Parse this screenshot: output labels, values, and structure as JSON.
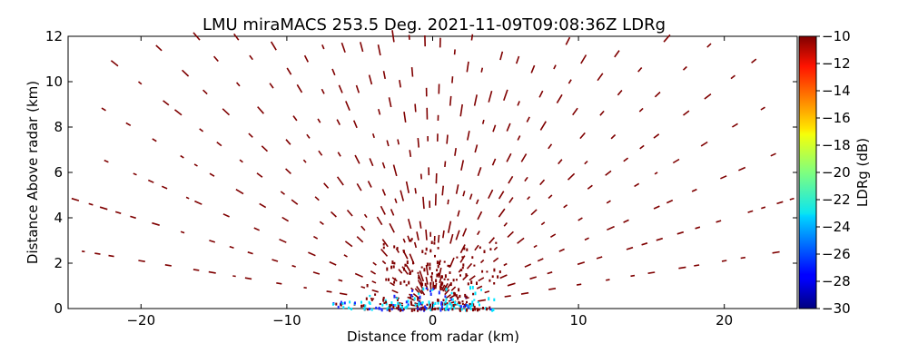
{
  "chart_data": {
    "type": "scatter",
    "title": "LMU miraMACS 253.5 Deg. 2021-11-09T09:08:36Z  LDRg",
    "xlabel": "Distance from radar (km)",
    "ylabel": "Distance Above radar  (km)",
    "xlim": [
      -25,
      25
    ],
    "ylim": [
      0,
      12
    ],
    "x_ticks": [
      "−20",
      "−10",
      "0",
      "10",
      "20"
    ],
    "x_tick_values": [
      -20,
      -10,
      0,
      10,
      20
    ],
    "y_ticks": [
      "0",
      "2",
      "4",
      "6",
      "8",
      "10",
      "12"
    ],
    "y_tick_values": [
      0,
      2,
      4,
      6,
      8,
      10,
      12
    ],
    "grid": false,
    "colorbar": {
      "label": "LDRg (dB)",
      "range": [
        -30,
        -10
      ],
      "ticks": [
        "−30",
        "−28",
        "−26",
        "−24",
        "−22",
        "−20",
        "−18",
        "−16",
        "−14",
        "−12",
        "−10"
      ],
      "tick_values": [
        -30,
        -28,
        -26,
        -24,
        -22,
        -20,
        -18,
        -16,
        -14,
        -12,
        -10
      ],
      "colormap": "jet"
    },
    "colors": {
      "dominant_ldr": "#7f0000",
      "near_radar_low_ldr": "#00e5ff",
      "low_ldr_blue": "#1a2aff"
    },
    "observations": "Scattered radar returns in radial streaks; dominant LDR near -10 dB, lower values (about -24 to -28 dB) concentrated near the radar within 0-1 km altitude"
  }
}
